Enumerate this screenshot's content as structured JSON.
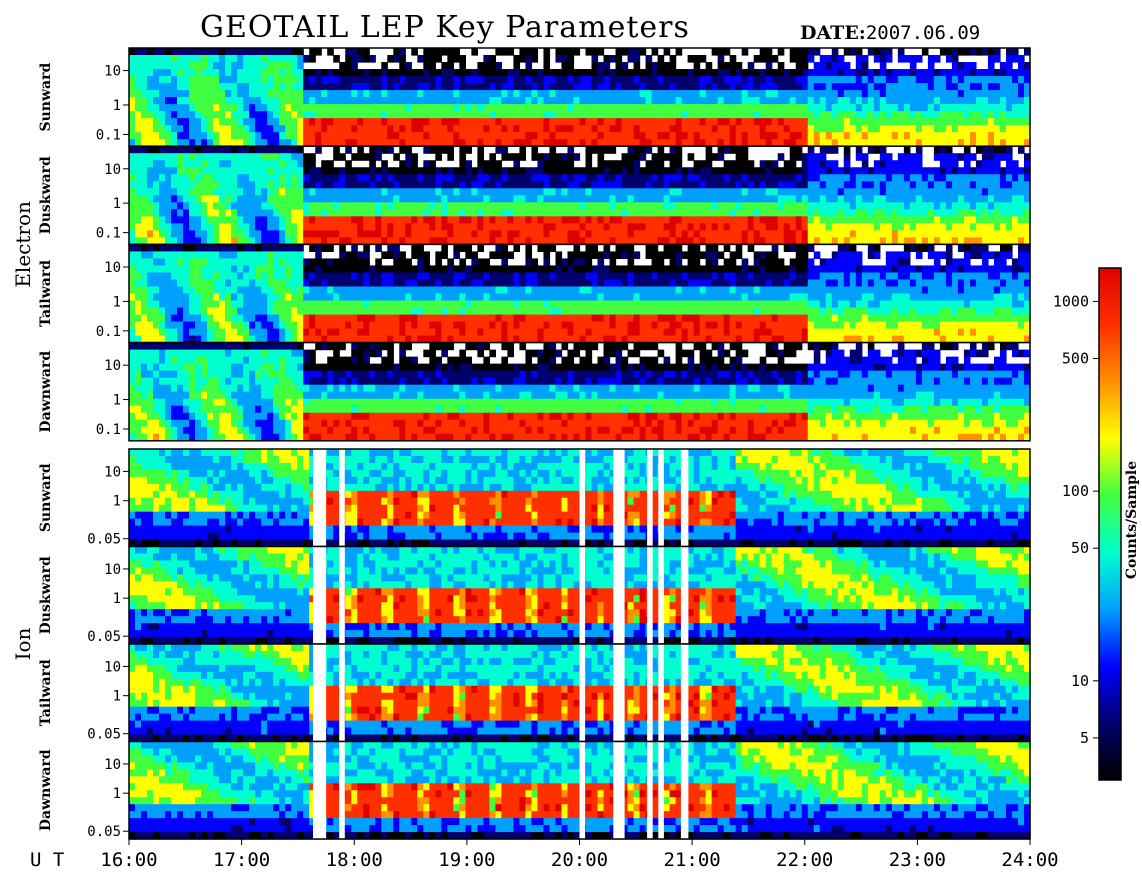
{
  "header": {
    "title": "GEOTAIL LEP Key Parameters",
    "date_label": "DATE:",
    "date_value": "2007.06.09"
  },
  "chart_data": {
    "type": "heatmap",
    "x_axis": {
      "prefix_label": "U T",
      "ticks": [
        "16:00",
        "17:00",
        "18:00",
        "19:00",
        "20:00",
        "21:00",
        "22:00",
        "23:00",
        "24:00"
      ]
    },
    "groups": [
      {
        "name": "Electron",
        "panels": [
          {
            "label": "Sunward",
            "y_ticks": [
              "10",
              "1",
              "0.1"
            ]
          },
          {
            "label": "Duskward",
            "y_ticks": [
              "10",
              "1",
              "0.1"
            ]
          },
          {
            "label": "Tailward",
            "y_ticks": [
              "10",
              "1",
              "0.1"
            ]
          },
          {
            "label": "Dawnward",
            "y_ticks": [
              "10",
              "1",
              "0.1"
            ]
          }
        ]
      },
      {
        "name": "Ion",
        "panels": [
          {
            "label": "Sunward",
            "y_ticks": [
              "10",
              "1",
              "0.05"
            ]
          },
          {
            "label": "Duskward",
            "y_ticks": [
              "10",
              "1",
              "0.05"
            ]
          },
          {
            "label": "Tailward",
            "y_ticks": [
              "10",
              "1",
              "0.05"
            ]
          },
          {
            "label": "Dawnward",
            "y_ticks": [
              "10",
              "1",
              "0.05"
            ]
          }
        ]
      }
    ],
    "colorbar": {
      "label": "Counts/Sample",
      "scale": "log",
      "range": [
        3,
        1500
      ],
      "ticks": [
        "1000",
        "500",
        "100",
        "50",
        "10",
        "5"
      ],
      "colors": [
        "#000000",
        "#00006e",
        "#0000ff",
        "#00a0ff",
        "#00ffd0",
        "#40ff40",
        "#ffff00",
        "#ff9000",
        "#ff3000",
        "#e00000"
      ]
    },
    "data_gaps": [
      [
        "17:38",
        "17:45"
      ],
      [
        "17:52",
        "17:55"
      ],
      [
        "20:00",
        "20:03"
      ],
      [
        "20:18",
        "20:24"
      ],
      [
        "20:36",
        "20:39"
      ],
      [
        "20:42",
        "20:45"
      ],
      [
        "20:54",
        "20:58"
      ]
    ]
  }
}
